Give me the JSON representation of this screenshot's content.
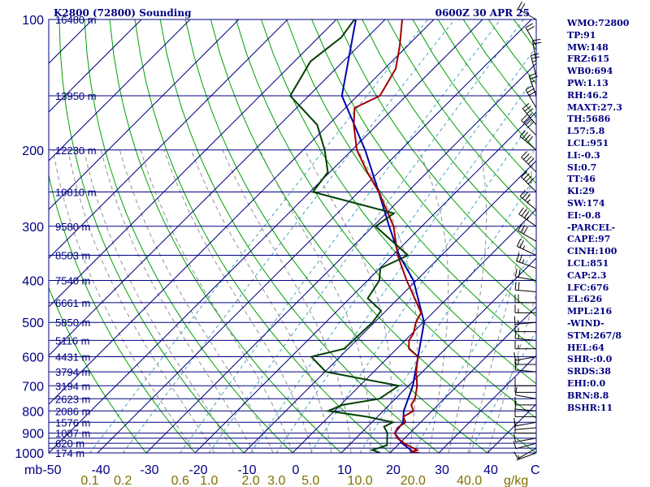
{
  "header": {
    "station": "K2800 (72800) Sounding",
    "time": "0600Z 30 APR 25"
  },
  "colors": {
    "frame": "#000080",
    "isobar": "#000080",
    "isotherm": "#000080",
    "dry_adiabat": "#00a000",
    "moist_adiabat": "#909090",
    "mixing_ratio": "#40a0c0",
    "temperature": "#a00000",
    "dewpoint": "#004000",
    "parcel": "#0000b0",
    "mixing_label": "#807000"
  },
  "axes": {
    "pressure_unit": "mb",
    "temperature_unit": "C",
    "mixing_unit": "g/kg",
    "pressure_ticks": [
      "100",
      "200",
      "300",
      "400",
      "500",
      "600",
      "700",
      "800",
      "900",
      "1000"
    ],
    "temperature_ticks": [
      "-50",
      "-40",
      "-30",
      "-20",
      "-10",
      "0",
      "10",
      "20",
      "30",
      "40"
    ],
    "mixing_ticks": [
      "0.1",
      "0.2",
      "0.6",
      "1.0",
      "2.0",
      "3.0",
      "5.0",
      "10.0",
      "20.0",
      "40.0"
    ]
  },
  "chart_data": {
    "type": "line",
    "subtype": "skew-t log-p sounding",
    "pressure_range_mb": [
      100,
      1000
    ],
    "temperature_range_c": [
      -50,
      50
    ],
    "isobars_mb": [
      100,
      150,
      200,
      250,
      300,
      350,
      400,
      450,
      500,
      550,
      600,
      650,
      700,
      750,
      800,
      850,
      900,
      925,
      950,
      975,
      1000
    ],
    "height_levels": [
      {
        "p": 100,
        "label": "16480 m"
      },
      {
        "p": 150,
        "label": "13950 m"
      },
      {
        "p": 200,
        "label": "12230 m"
      },
      {
        "p": 250,
        "label": "10810 m"
      },
      {
        "p": 300,
        "label": "9580 m"
      },
      {
        "p": 350,
        "label": "8503 m"
      },
      {
        "p": 400,
        "label": "7540 m"
      },
      {
        "p": 450,
        "label": "6661 m"
      },
      {
        "p": 500,
        "label": "5850 m"
      },
      {
        "p": 550,
        "label": "5116 m"
      },
      {
        "p": 600,
        "label": "4431 m"
      },
      {
        "p": 650,
        "label": "3794 m"
      },
      {
        "p": 700,
        "label": "3194 m"
      },
      {
        "p": 750,
        "label": "2623 m"
      },
      {
        "p": 800,
        "label": "2086 m"
      },
      {
        "p": 850,
        "label": "1576 m"
      },
      {
        "p": 900,
        "label": "1087 m"
      },
      {
        "p": 950,
        "label": "620 m"
      },
      {
        "p": 1000,
        "label": "174 m"
      }
    ],
    "temperature_profile": [
      {
        "p": 1000,
        "t": 26.0
      },
      {
        "p": 995,
        "t": 24.0
      },
      {
        "p": 985,
        "t": 25.0
      },
      {
        "p": 955,
        "t": 21.4
      },
      {
        "p": 925,
        "t": 18.5
      },
      {
        "p": 900,
        "t": 16.9
      },
      {
        "p": 875,
        "t": 16.4
      },
      {
        "p": 850,
        "t": 16.9
      },
      {
        "p": 825,
        "t": 15.3
      },
      {
        "p": 800,
        "t": 16.2
      },
      {
        "p": 775,
        "t": 14.5
      },
      {
        "p": 750,
        "t": 14.0
      },
      {
        "p": 700,
        "t": 11.8
      },
      {
        "p": 650,
        "t": 8.7
      },
      {
        "p": 600,
        "t": 6.0
      },
      {
        "p": 575,
        "t": 2.5
      },
      {
        "p": 550,
        "t": 0.8
      },
      {
        "p": 530,
        "t": 0.3
      },
      {
        "p": 500,
        "t": -1.5
      },
      {
        "p": 475,
        "t": -2.4
      },
      {
        "p": 450,
        "t": -5.4
      },
      {
        "p": 400,
        "t": -12.0
      },
      {
        "p": 350,
        "t": -19.0
      },
      {
        "p": 300,
        "t": -25.8
      },
      {
        "p": 250,
        "t": -35.9
      },
      {
        "p": 225,
        "t": -42.3
      },
      {
        "p": 200,
        "t": -49.0
      },
      {
        "p": 175,
        "t": -54.8
      },
      {
        "p": 160,
        "t": -58.1
      },
      {
        "p": 150,
        "t": -55.4
      },
      {
        "p": 130,
        "t": -57.7
      },
      {
        "p": 115,
        "t": -61.6
      },
      {
        "p": 100,
        "t": -66.5
      }
    ],
    "dewpoint_profile": [
      {
        "p": 1000,
        "t": 18.0
      },
      {
        "p": 985,
        "t": 15.8
      },
      {
        "p": 960,
        "t": 17.8
      },
      {
        "p": 925,
        "t": 16.4
      },
      {
        "p": 900,
        "t": 15.4
      },
      {
        "p": 870,
        "t": 13.4
      },
      {
        "p": 850,
        "t": 14.3
      },
      {
        "p": 825,
        "t": 7.8
      },
      {
        "p": 800,
        "t": -1.3
      },
      {
        "p": 775,
        "t": 0.4
      },
      {
        "p": 750,
        "t": 6.7
      },
      {
        "p": 700,
        "t": 8.0
      },
      {
        "p": 650,
        "t": -9.8
      },
      {
        "p": 600,
        "t": -15.9
      },
      {
        "p": 575,
        "t": -10.8
      },
      {
        "p": 500,
        "t": -10.4
      },
      {
        "p": 470,
        "t": -11.0
      },
      {
        "p": 440,
        "t": -16.3
      },
      {
        "p": 400,
        "t": -17.6
      },
      {
        "p": 375,
        "t": -19.9
      },
      {
        "p": 350,
        "t": -16.9
      },
      {
        "p": 300,
        "t": -29.5
      },
      {
        "p": 280,
        "t": -28.4
      },
      {
        "p": 250,
        "t": -49.4
      },
      {
        "p": 225,
        "t": -50.4
      },
      {
        "p": 200,
        "t": -55.6
      },
      {
        "p": 175,
        "t": -62.3
      },
      {
        "p": 150,
        "t": -73.8
      },
      {
        "p": 125,
        "t": -76.7
      },
      {
        "p": 110,
        "t": -75.3
      },
      {
        "p": 100,
        "t": -76.3
      }
    ],
    "parcel_profile": [
      {
        "p": 1000,
        "t": 25.0
      },
      {
        "p": 950,
        "t": 20.5
      },
      {
        "p": 900,
        "t": 16.9
      },
      {
        "p": 850,
        "t": 16.4
      },
      {
        "p": 800,
        "t": 14.2
      },
      {
        "p": 700,
        "t": 10.9
      },
      {
        "p": 600,
        "t": 6.0
      },
      {
        "p": 500,
        "t": 0.2
      },
      {
        "p": 400,
        "t": -10.6
      },
      {
        "p": 350,
        "t": -18.7
      },
      {
        "p": 300,
        "t": -26.7
      },
      {
        "p": 250,
        "t": -35.9
      },
      {
        "p": 200,
        "t": -47.3
      },
      {
        "p": 150,
        "t": -63.2
      },
      {
        "p": 100,
        "t": -76.0
      }
    ],
    "wind_barbs": [
      {
        "p": 1000,
        "dir": 250,
        "spd": 5
      },
      {
        "p": 975,
        "dir": 240,
        "spd": 10
      },
      {
        "p": 950,
        "dir": 255,
        "spd": 10
      },
      {
        "p": 925,
        "dir": 260,
        "spd": 10
      },
      {
        "p": 900,
        "dir": 270,
        "spd": 10
      },
      {
        "p": 875,
        "dir": 265,
        "spd": 10
      },
      {
        "p": 850,
        "dir": 260,
        "spd": 10
      },
      {
        "p": 825,
        "dir": 270,
        "spd": 10
      },
      {
        "p": 800,
        "dir": 275,
        "spd": 10
      },
      {
        "p": 775,
        "dir": 270,
        "spd": 10
      },
      {
        "p": 750,
        "dir": 280,
        "spd": 10
      },
      {
        "p": 725,
        "dir": 270,
        "spd": 10
      },
      {
        "p": 700,
        "dir": 270,
        "spd": 10
      },
      {
        "p": 650,
        "dir": 275,
        "spd": 10
      },
      {
        "p": 625,
        "dir": 270,
        "spd": 15
      },
      {
        "p": 600,
        "dir": 260,
        "spd": 15
      },
      {
        "p": 575,
        "dir": 270,
        "spd": 15
      },
      {
        "p": 550,
        "dir": 275,
        "spd": 15
      },
      {
        "p": 525,
        "dir": 270,
        "spd": 15
      },
      {
        "p": 500,
        "dir": 265,
        "spd": 15
      },
      {
        "p": 475,
        "dir": 270,
        "spd": 15
      },
      {
        "p": 450,
        "dir": 270,
        "spd": 20
      },
      {
        "p": 425,
        "dir": 275,
        "spd": 20
      },
      {
        "p": 400,
        "dir": 280,
        "spd": 20
      },
      {
        "p": 375,
        "dir": 290,
        "spd": 25
      },
      {
        "p": 350,
        "dir": 295,
        "spd": 25
      },
      {
        "p": 325,
        "dir": 300,
        "spd": 30
      },
      {
        "p": 300,
        "dir": 305,
        "spd": 35
      },
      {
        "p": 275,
        "dir": 310,
        "spd": 35
      },
      {
        "p": 250,
        "dir": 315,
        "spd": 40
      },
      {
        "p": 225,
        "dir": 315,
        "spd": 40
      },
      {
        "p": 200,
        "dir": 310,
        "spd": 40
      },
      {
        "p": 185,
        "dir": 315,
        "spd": 40
      },
      {
        "p": 175,
        "dir": 320,
        "spd": 35
      },
      {
        "p": 160,
        "dir": 330,
        "spd": 30
      },
      {
        "p": 150,
        "dir": 340,
        "spd": 25
      },
      {
        "p": 135,
        "dir": 345,
        "spd": 25
      },
      {
        "p": 125,
        "dir": 350,
        "spd": 20
      },
      {
        "p": 115,
        "dir": 330,
        "spd": 20
      },
      {
        "p": 100,
        "dir": 300,
        "spd": 20
      }
    ]
  },
  "indices": [
    "WMO:72800",
    "TP:91",
    "MW:148",
    "FRZ:615",
    "WB0:694",
    "PW:1.13",
    "RH:46.2",
    "MAXT:27.3",
    "TH:5686",
    "L57:5.8",
    "LCL:951",
    "LI:-0.3",
    "SI:0.7",
    "TT:46",
    "KI:29",
    "SW:174",
    "EI:-0.8",
    "-PARCEL-",
    "CAPE:97",
    "CINH:100",
    "LCL:851",
    "CAP:2.3",
    "LFC:676",
    "EL:626",
    "MPL:216",
    "-WIND-",
    "STM:267/8",
    "HEL:64",
    "SHR-:0.0",
    "SRDS:38",
    "EHI:0.0",
    "BRN:8.8",
    "BSHR:11"
  ]
}
